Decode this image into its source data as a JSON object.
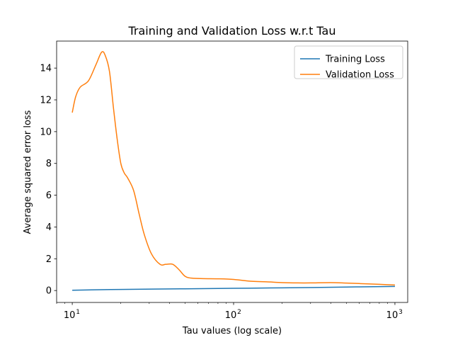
{
  "chart_data": {
    "type": "line",
    "title": "Training and Validation Loss w.r.t Tau",
    "xlabel": "Tau values (log scale)",
    "ylabel": "Average squared error loss",
    "x_scale": "log",
    "xlim": [
      8,
      1200
    ],
    "ylim": [
      -0.75,
      15.7
    ],
    "x_ticks": [
      {
        "value": 10,
        "base": "10",
        "exp": "1"
      },
      {
        "value": 100,
        "base": "10",
        "exp": "2"
      },
      {
        "value": 1000,
        "base": "10",
        "exp": "3"
      }
    ],
    "y_ticks": [
      0,
      2,
      4,
      6,
      8,
      10,
      12,
      14
    ],
    "grid": false,
    "legend_position": "top-right",
    "series": [
      {
        "name": "Training Loss",
        "color": "#1f77b4",
        "x": [
          10,
          20,
          50,
          100,
          200,
          500,
          1000
        ],
        "y": [
          0.02,
          0.07,
          0.11,
          0.14,
          0.17,
          0.22,
          0.26
        ]
      },
      {
        "name": "Validation Loss",
        "color": "#ff7f0e",
        "x": [
          10,
          10.5,
          11.2,
          12.6,
          14,
          15.2,
          16,
          17,
          18,
          19,
          20,
          21,
          22,
          24,
          26,
          28,
          31,
          35,
          38,
          42,
          46,
          50,
          55,
          65,
          80,
          100,
          130,
          160,
          200,
          250,
          300,
          400,
          500,
          600,
          800,
          1000
        ],
        "y": [
          11.2,
          12.2,
          12.8,
          13.2,
          14.2,
          15.0,
          14.8,
          13.8,
          11.5,
          9.5,
          8.0,
          7.4,
          7.1,
          6.3,
          4.8,
          3.5,
          2.3,
          1.65,
          1.65,
          1.65,
          1.3,
          0.9,
          0.78,
          0.75,
          0.74,
          0.7,
          0.58,
          0.55,
          0.5,
          0.48,
          0.48,
          0.5,
          0.47,
          0.44,
          0.39,
          0.35
        ]
      }
    ]
  }
}
